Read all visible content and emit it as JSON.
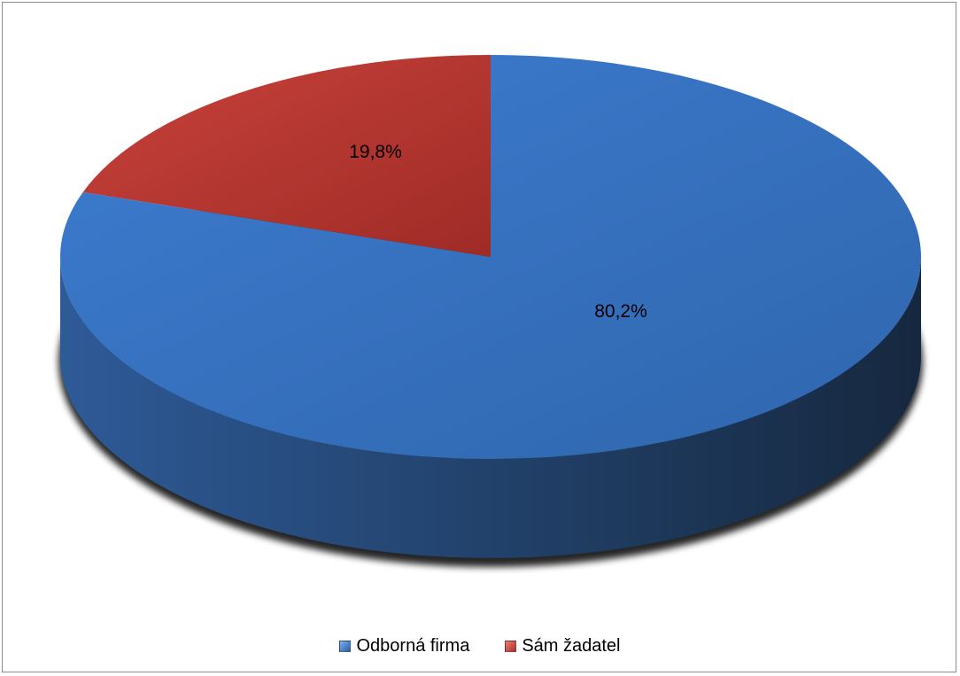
{
  "chart_data": {
    "type": "pie",
    "style": "3d",
    "slices": [
      {
        "label": "Odborná firma",
        "value": 80.2,
        "display": "80,2%",
        "color": "#3b78c8"
      },
      {
        "label": "Sám žadatel",
        "value": 19.8,
        "display": "19,8%",
        "color": "#c0392b"
      }
    ],
    "legend_position": "bottom"
  }
}
